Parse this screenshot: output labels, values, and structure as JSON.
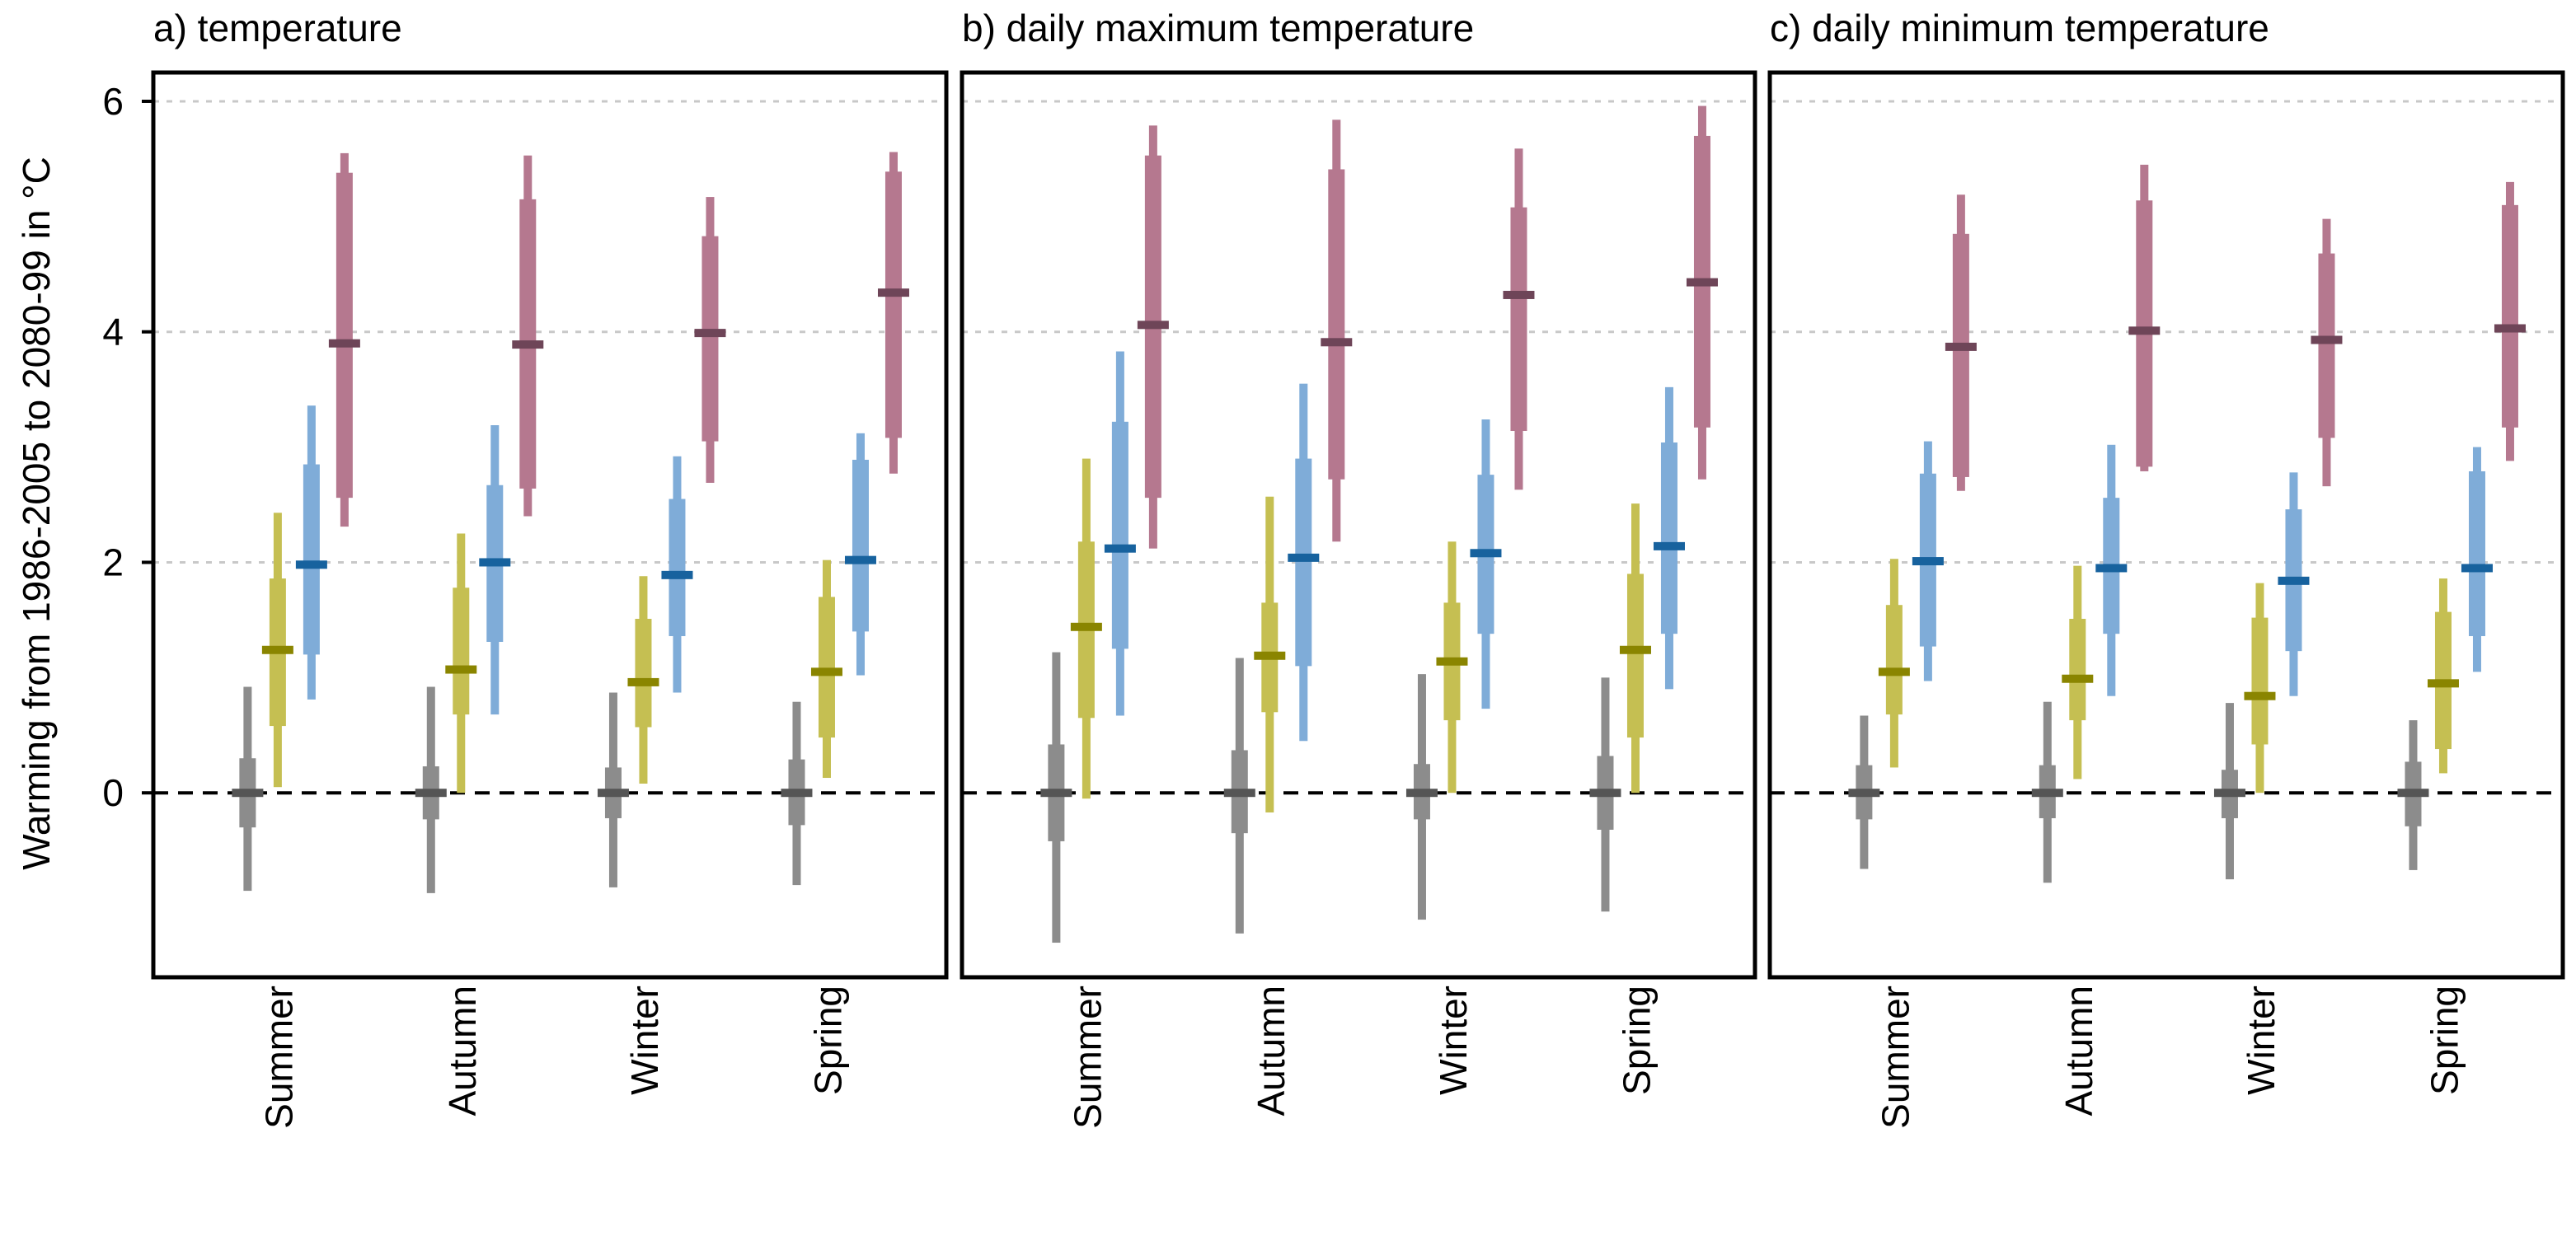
{
  "chart_data": {
    "type": "box",
    "ylabel": "Warming from  1986-2005  to 2080-99 in °C",
    "ylim": [
      -1.6,
      6.25
    ],
    "yticks": [
      0,
      2,
      4,
      6
    ],
    "grid": "horizontal dotted at 2, 4 and 6; dashed reference line at 0",
    "categories": [
      "Summer",
      "Autumn",
      "Winter",
      "Spring"
    ],
    "series_colors": [
      "#8c8c8c",
      "#c5bf52",
      "#7facd8",
      "#b5788f"
    ],
    "median_colors": [
      "#555555",
      "#8a8500",
      "#17629e",
      "#6e4558"
    ],
    "panels": [
      {
        "title": "a) temperature",
        "groups": [
          {
            "category": "Summer",
            "series": [
              {
                "min": -0.85,
                "q1": -0.3,
                "median": 0.0,
                "q3": 0.3,
                "max": 0.92
              },
              {
                "min": 0.05,
                "q1": 0.58,
                "median": 1.24,
                "q3": 1.86,
                "max": 2.43
              },
              {
                "min": 0.81,
                "q1": 1.2,
                "median": 1.98,
                "q3": 2.85,
                "max": 3.36
              },
              {
                "min": 2.31,
                "q1": 2.56,
                "median": 3.9,
                "q3": 5.38,
                "max": 5.55
              }
            ]
          },
          {
            "category": "Autumn",
            "series": [
              {
                "min": -0.87,
                "q1": -0.23,
                "median": 0.0,
                "q3": 0.23,
                "max": 0.92
              },
              {
                "min": 0.0,
                "q1": 0.68,
                "median": 1.07,
                "q3": 1.78,
                "max": 2.25
              },
              {
                "min": 0.68,
                "q1": 1.31,
                "median": 2.0,
                "q3": 2.67,
                "max": 3.19
              },
              {
                "min": 2.4,
                "q1": 2.64,
                "median": 3.89,
                "q3": 5.15,
                "max": 5.53
              }
            ]
          },
          {
            "category": "Winter",
            "series": [
              {
                "min": -0.82,
                "q1": -0.22,
                "median": 0.0,
                "q3": 0.22,
                "max": 0.87
              },
              {
                "min": 0.08,
                "q1": 0.57,
                "median": 0.96,
                "q3": 1.51,
                "max": 1.88
              },
              {
                "min": 0.87,
                "q1": 1.36,
                "median": 1.89,
                "q3": 2.55,
                "max": 2.92
              },
              {
                "min": 2.69,
                "q1": 3.05,
                "median": 3.99,
                "q3": 4.83,
                "max": 5.17
              }
            ]
          },
          {
            "category": "Spring",
            "series": [
              {
                "min": -0.8,
                "q1": -0.28,
                "median": 0.0,
                "q3": 0.29,
                "max": 0.79
              },
              {
                "min": 0.13,
                "q1": 0.48,
                "median": 1.05,
                "q3": 1.7,
                "max": 2.02
              },
              {
                "min": 1.02,
                "q1": 1.4,
                "median": 2.02,
                "q3": 2.89,
                "max": 3.12
              },
              {
                "min": 2.77,
                "q1": 3.08,
                "median": 4.34,
                "q3": 5.39,
                "max": 5.56
              }
            ]
          }
        ]
      },
      {
        "title": "b) daily maximum temperature",
        "groups": [
          {
            "category": "Summer",
            "series": [
              {
                "min": -1.3,
                "q1": -0.42,
                "median": 0.0,
                "q3": 0.42,
                "max": 1.22
              },
              {
                "min": -0.05,
                "q1": 0.65,
                "median": 1.44,
                "q3": 2.18,
                "max": 2.9
              },
              {
                "min": 0.67,
                "q1": 1.25,
                "median": 2.12,
                "q3": 3.22,
                "max": 3.83
              },
              {
                "min": 2.12,
                "q1": 2.56,
                "median": 4.06,
                "q3": 5.53,
                "max": 5.79
              }
            ]
          },
          {
            "category": "Autumn",
            "series": [
              {
                "min": -1.22,
                "q1": -0.35,
                "median": 0.0,
                "q3": 0.37,
                "max": 1.17
              },
              {
                "min": -0.17,
                "q1": 0.7,
                "median": 1.19,
                "q3": 1.65,
                "max": 2.57
              },
              {
                "min": 0.45,
                "q1": 1.1,
                "median": 2.04,
                "q3": 2.9,
                "max": 3.55
              },
              {
                "min": 2.18,
                "q1": 2.72,
                "median": 3.91,
                "q3": 5.41,
                "max": 5.84
              }
            ]
          },
          {
            "category": "Winter",
            "series": [
              {
                "min": -1.1,
                "q1": -0.23,
                "median": 0.0,
                "q3": 0.25,
                "max": 1.03
              },
              {
                "min": 0.0,
                "q1": 0.63,
                "median": 1.14,
                "q3": 1.65,
                "max": 2.18
              },
              {
                "min": 0.73,
                "q1": 1.38,
                "median": 2.08,
                "q3": 2.76,
                "max": 3.24
              },
              {
                "min": 2.63,
                "q1": 3.14,
                "median": 4.32,
                "q3": 5.08,
                "max": 5.59
              }
            ]
          },
          {
            "category": "Spring",
            "series": [
              {
                "min": -1.03,
                "q1": -0.32,
                "median": 0.0,
                "q3": 0.32,
                "max": 1.0
              },
              {
                "min": 0.0,
                "q1": 0.48,
                "median": 1.24,
                "q3": 1.9,
                "max": 2.51
              },
              {
                "min": 0.9,
                "q1": 1.38,
                "median": 2.14,
                "q3": 3.04,
                "max": 3.52
              },
              {
                "min": 2.72,
                "q1": 3.17,
                "median": 4.43,
                "q3": 5.7,
                "max": 5.96
              }
            ]
          }
        ]
      },
      {
        "title": "c) daily minimum temperature",
        "groups": [
          {
            "category": "Summer",
            "series": [
              {
                "min": -0.66,
                "q1": -0.23,
                "median": 0.0,
                "q3": 0.24,
                "max": 0.67
              },
              {
                "min": 0.22,
                "q1": 0.68,
                "median": 1.05,
                "q3": 1.63,
                "max": 2.03
              },
              {
                "min": 0.97,
                "q1": 1.27,
                "median": 2.01,
                "q3": 2.77,
                "max": 3.05
              },
              {
                "min": 2.62,
                "q1": 2.74,
                "median": 3.87,
                "q3": 4.85,
                "max": 5.19
              }
            ]
          },
          {
            "category": "Autumn",
            "series": [
              {
                "min": -0.78,
                "q1": -0.22,
                "median": 0.0,
                "q3": 0.24,
                "max": 0.79
              },
              {
                "min": 0.12,
                "q1": 0.63,
                "median": 0.99,
                "q3": 1.51,
                "max": 1.97
              },
              {
                "min": 0.84,
                "q1": 1.38,
                "median": 1.95,
                "q3": 2.56,
                "max": 3.02
              },
              {
                "min": 2.79,
                "q1": 2.83,
                "median": 4.01,
                "q3": 5.14,
                "max": 5.45
              }
            ]
          },
          {
            "category": "Winter",
            "series": [
              {
                "min": -0.75,
                "q1": -0.22,
                "median": 0.0,
                "q3": 0.2,
                "max": 0.78
              },
              {
                "min": 0.0,
                "q1": 0.42,
                "median": 0.84,
                "q3": 1.52,
                "max": 1.82
              },
              {
                "min": 0.84,
                "q1": 1.23,
                "median": 1.84,
                "q3": 2.46,
                "max": 2.78
              },
              {
                "min": 2.66,
                "q1": 3.08,
                "median": 3.93,
                "q3": 4.68,
                "max": 4.98
              }
            ]
          },
          {
            "category": "Spring",
            "series": [
              {
                "min": -0.67,
                "q1": -0.29,
                "median": 0.0,
                "q3": 0.27,
                "max": 0.63
              },
              {
                "min": 0.17,
                "q1": 0.38,
                "median": 0.95,
                "q3": 1.57,
                "max": 1.86
              },
              {
                "min": 1.05,
                "q1": 1.36,
                "median": 1.95,
                "q3": 2.79,
                "max": 3.0
              },
              {
                "min": 2.88,
                "q1": 3.17,
                "median": 4.03,
                "q3": 5.1,
                "max": 5.3
              }
            ]
          }
        ]
      }
    ]
  }
}
